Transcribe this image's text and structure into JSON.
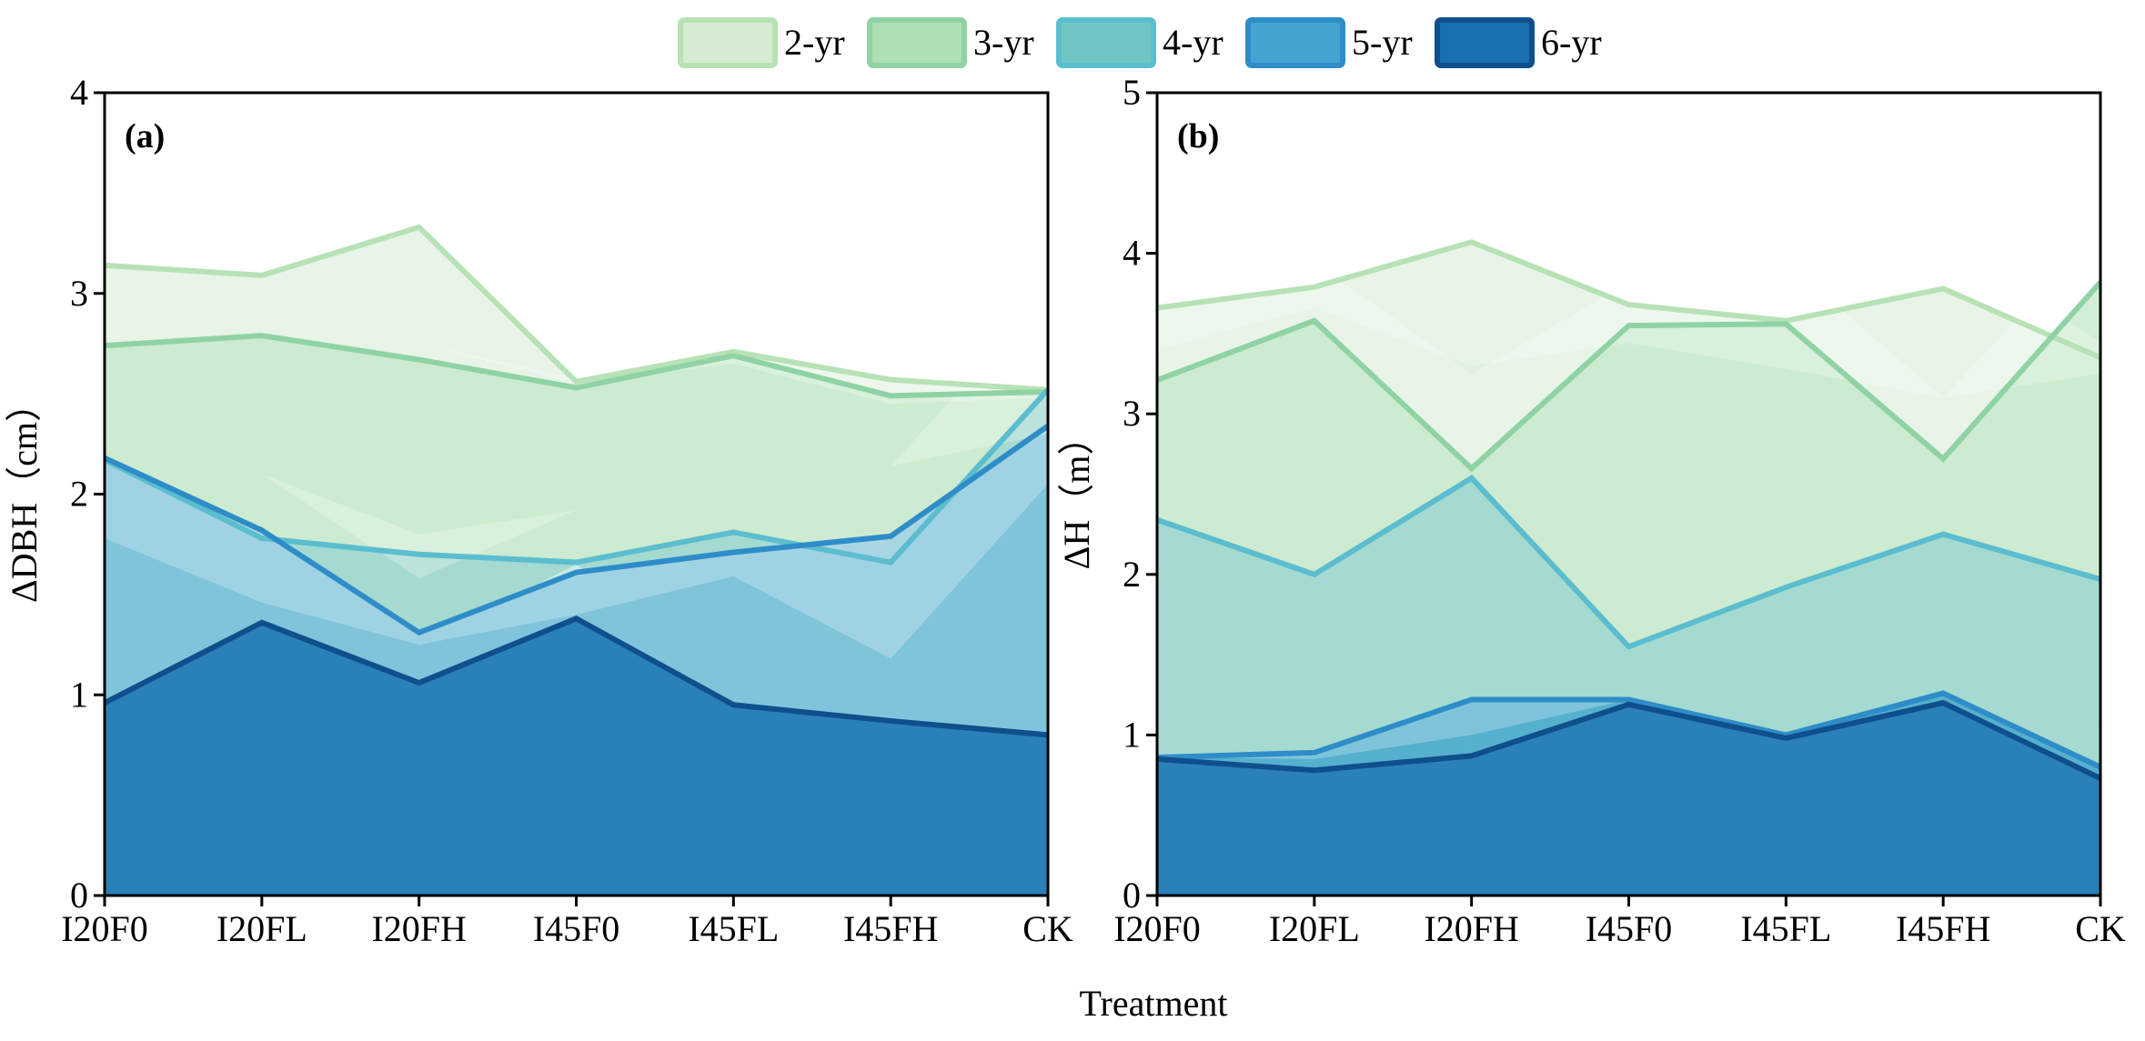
{
  "figure": {
    "xlabel": "Treatment",
    "legend": {
      "position": "top-center",
      "entries": [
        {
          "label": "2-yr",
          "fill": "#d5ecd3",
          "stroke": "#b7e2b6"
        },
        {
          "label": "3-yr",
          "fill": "#aedfb4",
          "stroke": "#8fd3a5"
        },
        {
          "label": "4-yr",
          "fill": "#71c5c2",
          "stroke": "#5bbdcf"
        },
        {
          "label": "5-yr",
          "fill": "#42a5d2",
          "stroke": "#2e8dc8"
        },
        {
          "label": "6-yr",
          "fill": "#1a6fb0",
          "stroke": "#0f4f8c"
        }
      ]
    }
  },
  "chart_data": [
    {
      "type": "area",
      "panel_label": "(a)",
      "ylabel": "ΔDBH（cm）",
      "ylim": [
        0,
        4
      ],
      "yticks": [
        "0",
        "1",
        "2",
        "3",
        "4"
      ],
      "categories": [
        "I20F0",
        "I20FL",
        "I20FH",
        "I45F0",
        "I45FL",
        "I45FH",
        "CK"
      ],
      "series": [
        {
          "name": "2-yr",
          "values": [
            3.14,
            3.09,
            3.33,
            2.56,
            2.71,
            2.57,
            2.52
          ],
          "band_upper": [
            3.35,
            3.32,
            3.47,
            2.6,
            2.75,
            2.75,
            2.56
          ],
          "band_lower": [
            2.85,
            2.93,
            2.75,
            2.55,
            2.65,
            2.45,
            2.48
          ]
        },
        {
          "name": "3-yr",
          "values": [
            2.74,
            2.79,
            2.67,
            2.53,
            2.69,
            2.49,
            2.51
          ],
          "band_upper": [
            2.85,
            2.93,
            2.75,
            2.58,
            2.75,
            2.6,
            2.56
          ],
          "band_lower": [
            2.56,
            2.1,
            1.58,
            1.92,
            2.03,
            2.14,
            2.3
          ]
        },
        {
          "name": "4-yr",
          "values": [
            2.17,
            1.78,
            1.7,
            1.66,
            1.81,
            1.66,
            2.52
          ],
          "band_upper": [
            2.56,
            2.1,
            1.8,
            1.92,
            2.03,
            2.14,
            3.0
          ],
          "band_lower": [
            1.78,
            1.46,
            1.25,
            1.4,
            1.59,
            1.18,
            2.05
          ]
        },
        {
          "name": "5-yr",
          "values": [
            2.18,
            1.82,
            1.31,
            1.61,
            1.71,
            1.79,
            2.34
          ],
          "band_upper": [
            2.18,
            1.82,
            1.31,
            1.61,
            1.71,
            1.79,
            2.34
          ],
          "band_lower": [
            1.12,
            1.52,
            1.25,
            1.65,
            1.06,
            1.21,
            0.94
          ]
        },
        {
          "name": "6-yr",
          "values": [
            0.96,
            1.36,
            1.06,
            1.38,
            0.95,
            0.87,
            0.8
          ],
          "band_upper": [
            1.12,
            1.52,
            1.25,
            1.65,
            1.06,
            1.21,
            0.94
          ],
          "band_lower": [
            0.96,
            1.36,
            1.06,
            1.38,
            0.95,
            0.87,
            0.8
          ]
        }
      ]
    },
    {
      "type": "area",
      "panel_label": "(b)",
      "ylabel": "ΔH（m）",
      "ylim": [
        0,
        5
      ],
      "yticks": [
        "0",
        "1",
        "2",
        "3",
        "4",
        "5"
      ],
      "categories": [
        "I20F0",
        "I20FL",
        "I20FH",
        "I45F0",
        "I45FL",
        "I45FH",
        "CK"
      ],
      "series": [
        {
          "name": "2-yr",
          "values": [
            3.66,
            3.79,
            4.07,
            3.68,
            3.58,
            3.78,
            3.35
          ],
          "band_upper": [
            3.92,
            3.92,
            4.3,
            3.92,
            3.9,
            4.05,
            3.45
          ],
          "band_lower": [
            3.4,
            3.66,
            3.3,
            3.44,
            3.28,
            3.1,
            3.25
          ]
        },
        {
          "name": "3-yr",
          "values": [
            3.21,
            3.58,
            2.66,
            3.55,
            3.56,
            2.72,
            3.82
          ],
          "band_upper": [
            3.75,
            3.95,
            3.25,
            3.82,
            3.95,
            3.1,
            4.15
          ],
          "band_lower": [
            2.72,
            2.33,
            3.15,
            1.85,
            2.42,
            2.5,
            2.3
          ]
        },
        {
          "name": "4-yr",
          "values": [
            2.34,
            2.0,
            2.6,
            1.55,
            1.92,
            2.25,
            1.97
          ],
          "band_upper": [
            2.72,
            2.33,
            3.15,
            1.85,
            2.42,
            2.5,
            2.3
          ],
          "band_lower": [
            1.02,
            1.1,
            1.38,
            1.45,
            1.17,
            1.45,
            1.07
          ]
        },
        {
          "name": "5-yr",
          "values": [
            0.86,
            0.89,
            1.22,
            1.22,
            1.0,
            1.26,
            0.8
          ],
          "band_upper": [
            1.02,
            1.1,
            1.38,
            1.45,
            1.17,
            1.45,
            1.07
          ],
          "band_lower": [
            0.86,
            0.85,
            1.0,
            1.22,
            1.0,
            1.26,
            0.8
          ]
        },
        {
          "name": "6-yr",
          "values": [
            0.85,
            0.78,
            0.87,
            1.19,
            0.98,
            1.2,
            0.73
          ],
          "band_upper": [
            0.85,
            0.78,
            0.87,
            1.19,
            0.98,
            1.2,
            0.73
          ],
          "band_lower": [
            0.85,
            0.78,
            0.87,
            1.19,
            0.98,
            1.2,
            0.73
          ]
        }
      ]
    }
  ]
}
